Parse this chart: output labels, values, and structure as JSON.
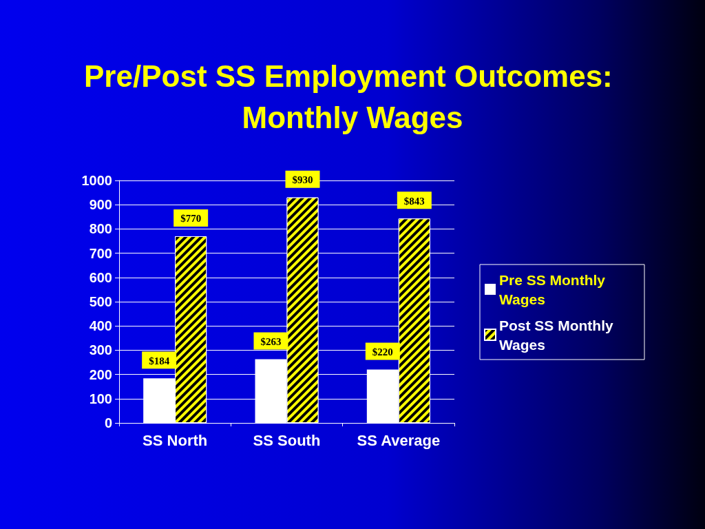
{
  "chart_data": {
    "type": "bar",
    "title": "Pre/Post SS Employment Outcomes: Monthly Wages",
    "categories": [
      "SS North",
      "SS South",
      "SS Average"
    ],
    "series": [
      {
        "name": "Pre SS Monthly Wages",
        "color": "#ffffff",
        "values": [
          184,
          263,
          220
        ],
        "value_labels": [
          "$184",
          "$263",
          "$220"
        ]
      },
      {
        "name": "Post SS Monthly Wages",
        "color": "#ffff00",
        "values": [
          770,
          930,
          843
        ],
        "value_labels": [
          "$770",
          "$930",
          "$843"
        ]
      }
    ],
    "ylim": [
      0,
      1000
    ],
    "yticks": [
      0,
      100,
      200,
      300,
      400,
      500,
      600,
      700,
      800,
      900,
      1000
    ],
    "grid": "y",
    "legend": "right"
  }
}
